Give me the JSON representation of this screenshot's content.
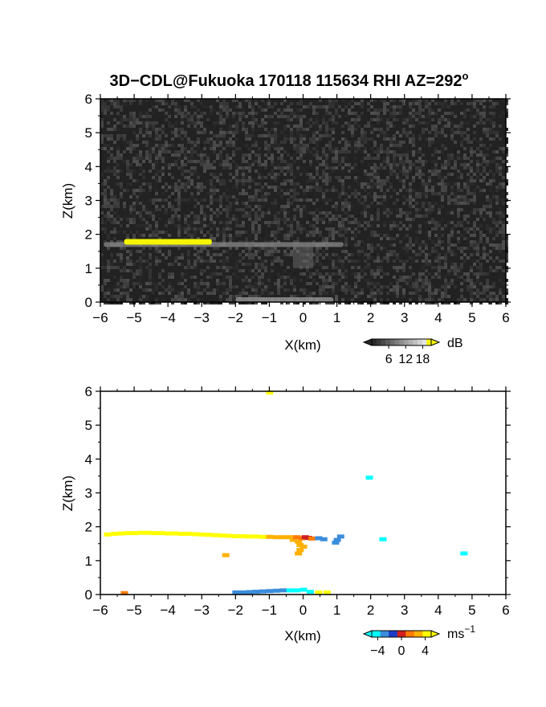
{
  "chart_data": [
    {
      "type": "heatmap",
      "panel": "reflectivity",
      "title": "3D−CDL@Fukuoka 170118 115634 RHI AZ=292",
      "title_sup": "o",
      "xlabel": "X(km)",
      "ylabel": "Z(km)",
      "xlim": [
        -6,
        6
      ],
      "ylim": [
        0,
        6
      ],
      "xticks": [
        "−6",
        "−5",
        "−4",
        "−3",
        "−2",
        "−1",
        "0",
        "1",
        "2",
        "3",
        "4",
        "5",
        "6"
      ],
      "yticks": [
        "0",
        "1",
        "2",
        "3",
        "4",
        "5",
        "6"
      ],
      "background": "noise (dark gray, ~0–6 dB)",
      "features": [
        {
          "name": "thin echo layer",
          "x_range": [
            -5.9,
            1.2
          ],
          "z": 1.7,
          "intensity_db": 8
        },
        {
          "name": "strong segment",
          "x_range": [
            -5.3,
            -2.7
          ],
          "z": 1.78,
          "intensity_db": 18,
          "color": "#f5f500"
        },
        {
          "name": "faint column",
          "x_range": [
            -0.3,
            0.3
          ],
          "z_range": [
            1.0,
            1.7
          ],
          "intensity_db": 6
        },
        {
          "name": "surface echo",
          "x_range": [
            -2.0,
            0.9
          ],
          "z": 0.02,
          "intensity_db": 10
        }
      ],
      "colorbar": {
        "unit": "dB",
        "ticks": [
          "6",
          "12",
          "18"
        ],
        "range": [
          0,
          21
        ]
      }
    },
    {
      "type": "scatter",
      "panel": "doppler velocity",
      "xlabel": "X(km)",
      "ylabel": "Z(km)",
      "xlim": [
        -6,
        6
      ],
      "ylim": [
        0,
        6
      ],
      "xticks": [
        "−6",
        "−5",
        "−4",
        "−3",
        "−2",
        "−1",
        "0",
        "1",
        "2",
        "3",
        "4",
        "5",
        "6"
      ],
      "yticks": [
        "0",
        "1",
        "2",
        "3",
        "4",
        "5",
        "6"
      ],
      "points": [
        {
          "x": -5.8,
          "z": 1.76,
          "v": 4.4
        },
        {
          "x": -5.6,
          "z": 1.78,
          "v": 4.3
        },
        {
          "x": -5.4,
          "z": 1.79,
          "v": 4.4
        },
        {
          "x": -5.2,
          "z": 1.8,
          "v": 4.3
        },
        {
          "x": -5.0,
          "z": 1.8,
          "v": 4.4
        },
        {
          "x": -4.8,
          "z": 1.81,
          "v": 4.3
        },
        {
          "x": -4.6,
          "z": 1.81,
          "v": 4.4
        },
        {
          "x": -4.4,
          "z": 1.8,
          "v": 4.3
        },
        {
          "x": -4.2,
          "z": 1.8,
          "v": 4.4
        },
        {
          "x": -4.0,
          "z": 1.79,
          "v": 4.3
        },
        {
          "x": -3.8,
          "z": 1.79,
          "v": 4.4
        },
        {
          "x": -3.6,
          "z": 1.78,
          "v": 4.3
        },
        {
          "x": -3.4,
          "z": 1.78,
          "v": 4.4
        },
        {
          "x": -3.2,
          "z": 1.77,
          "v": 4.3
        },
        {
          "x": -3.0,
          "z": 1.76,
          "v": 4.2
        },
        {
          "x": -2.8,
          "z": 1.75,
          "v": 4.2
        },
        {
          "x": -2.6,
          "z": 1.74,
          "v": 4.1
        },
        {
          "x": -2.4,
          "z": 1.73,
          "v": 4.1
        },
        {
          "x": -2.2,
          "z": 1.72,
          "v": 4.0
        },
        {
          "x": -2.0,
          "z": 1.71,
          "v": 4.0
        },
        {
          "x": -1.8,
          "z": 1.71,
          "v": 3.9
        },
        {
          "x": -1.6,
          "z": 1.7,
          "v": 3.8
        },
        {
          "x": -1.4,
          "z": 1.7,
          "v": 3.8
        },
        {
          "x": -1.2,
          "z": 1.69,
          "v": 3.6
        },
        {
          "x": -1.0,
          "z": 1.69,
          "v": 3.4
        },
        {
          "x": -0.8,
          "z": 1.68,
          "v": 3.2
        },
        {
          "x": -0.6,
          "z": 1.68,
          "v": 3.0
        },
        {
          "x": -0.4,
          "z": 1.68,
          "v": 2.5
        },
        {
          "x": -0.3,
          "z": 1.6,
          "v": 2.3
        },
        {
          "x": -0.2,
          "z": 1.68,
          "v": 1.5
        },
        {
          "x": -0.15,
          "z": 1.55,
          "v": 2.2
        },
        {
          "x": -0.1,
          "z": 1.45,
          "v": 2.5
        },
        {
          "x": -0.05,
          "z": 1.65,
          "v": 1.0
        },
        {
          "x": 0.0,
          "z": 1.4,
          "v": 2.6
        },
        {
          "x": 0.05,
          "z": 1.68,
          "v": 0.3
        },
        {
          "x": -0.1,
          "z": 1.3,
          "v": 2.8
        },
        {
          "x": -0.15,
          "z": 1.2,
          "v": 2.8
        },
        {
          "x": 0.15,
          "z": 1.66,
          "v": 0.5
        },
        {
          "x": 0.25,
          "z": 1.64,
          "v": 0.8
        },
        {
          "x": 0.45,
          "z": 1.65,
          "v": -2.4
        },
        {
          "x": 0.6,
          "z": 1.62,
          "v": -2.9
        },
        {
          "x": 0.95,
          "z": 1.52,
          "v": -2.6
        },
        {
          "x": 1.0,
          "z": 1.6,
          "v": -2.6
        },
        {
          "x": 1.1,
          "z": 1.7,
          "v": -2.6
        },
        {
          "x": -2.3,
          "z": 1.15,
          "v": 3.5
        },
        {
          "x": 1.95,
          "z": 3.44,
          "v": -4.6
        },
        {
          "x": 2.35,
          "z": 1.62,
          "v": -4.6
        },
        {
          "x": 4.75,
          "z": 1.2,
          "v": -4.6
        },
        {
          "x": -1.0,
          "z": 5.95,
          "v": 4.0
        },
        {
          "x": -2.0,
          "z": 0.05,
          "v": -2.8
        },
        {
          "x": -1.8,
          "z": 0.05,
          "v": -3.0
        },
        {
          "x": -1.6,
          "z": 0.06,
          "v": -3.1
        },
        {
          "x": -1.4,
          "z": 0.07,
          "v": -3.2
        },
        {
          "x": -1.2,
          "z": 0.08,
          "v": -3.2
        },
        {
          "x": -1.0,
          "z": 0.09,
          "v": -3.3
        },
        {
          "x": -0.8,
          "z": 0.1,
          "v": -3.3
        },
        {
          "x": -0.6,
          "z": 0.11,
          "v": -3.4
        },
        {
          "x": -0.4,
          "z": 0.11,
          "v": -3.6
        },
        {
          "x": -0.2,
          "z": 0.11,
          "v": -3.8
        },
        {
          "x": 0.0,
          "z": 0.13,
          "v": -4.6
        },
        {
          "x": 0.2,
          "z": 0.07,
          "v": -4.4
        },
        {
          "x": 0.45,
          "z": 0.05,
          "v": 4.2
        },
        {
          "x": 0.7,
          "z": 0.05,
          "v": 4.3
        },
        {
          "x": -5.3,
          "z": 0.03,
          "v": 2.0
        }
      ],
      "colorbar": {
        "unit": "ms",
        "unit_sup": "−1",
        "ticks": [
          "−4",
          "0",
          "4"
        ],
        "range": [
          -5,
          5
        ]
      }
    }
  ],
  "colors": {
    "reflectivity_strong": "#f5f500",
    "velocity_scale": [
      "#00ffff",
      "#3a8ddc",
      "#1a3cc8",
      "#d02020",
      "#ff7a00",
      "#ffb000",
      "#ffff00"
    ]
  }
}
